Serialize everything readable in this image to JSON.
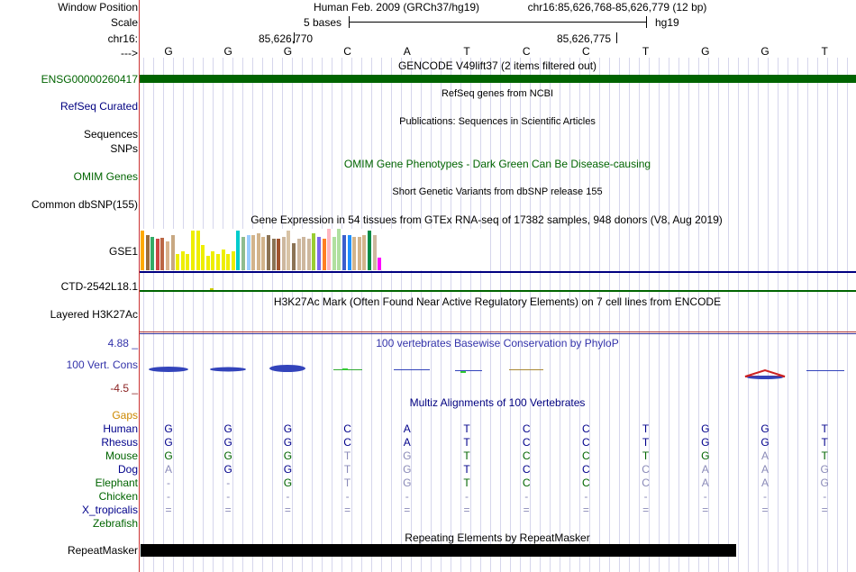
{
  "header": {
    "window_position_label": "Window Position",
    "scale_label": "Scale",
    "chrom_label": "chr16:",
    "strand_label": "--->",
    "assembly_title": "Human Feb. 2009 (GRCh37/hg19)",
    "position_text": "chr16:85,626,768-85,626,779 (12 bp)",
    "scale_text": "5 bases",
    "scale_db": "hg19",
    "coord_left": "85,626,770",
    "coord_right": "85,626,775"
  },
  "dna_bases": [
    "G",
    "G",
    "G",
    "C",
    "A",
    "T",
    "C",
    "C",
    "T",
    "G",
    "G",
    "T"
  ],
  "tracks": {
    "gencode_title": "GENCODE V49lift37 (2 items filtered out)",
    "gencode_item": "ENSG00000260417",
    "refseq_title": "RefSeq genes from NCBI",
    "refseq_label": "RefSeq Curated",
    "pubs_title": "Publications: Sequences in Scientific Articles",
    "sequences_label": "Sequences",
    "snps_label": "SNPs",
    "omim_title": "OMIM Gene Phenotypes - Dark Green Can Be Disease-causing",
    "omim_label": "OMIM Genes",
    "dbsnp_title": "Short Genetic Variants from dbSNP release 155",
    "dbsnp_label": "Common dbSNP(155)",
    "gtex_title": "Gene Expression in 54 tissues from GTEx RNA-seq of 17382 samples, 948 donors (V8, Aug 2019)",
    "gtex_label": "GSE1",
    "ctd_label": "CTD-2542L18.1",
    "h3k27_title": "H3K27Ac Mark (Often Found Near Active Regulatory Elements) on 7 cell lines from ENCODE",
    "h3k27_label": "Layered H3K27Ac",
    "phylop_title": "100 vertebrates Basewise Conservation by PhyloP",
    "phylop_label": "100 Vert. Cons",
    "phylop_max": "4.88 _",
    "phylop_min": "-4.5 _",
    "multiz_title": "Multiz Alignments of 100 Vertebrates",
    "gaps_label": "Gaps",
    "repeat_title": "Repeating Elements by RepeatMasker",
    "repeat_label": "RepeatMasker"
  },
  "gtex_expression": [
    {
      "v": 0.95,
      "c": "#ffaa00"
    },
    {
      "v": 0.85,
      "c": "#9a6d3b"
    },
    {
      "v": 0.8,
      "c": "#33aa66"
    },
    {
      "v": 0.75,
      "c": "#c44"
    },
    {
      "v": 0.78,
      "c": "#bb6644"
    },
    {
      "v": 0.7,
      "c": "#d9b38c"
    },
    {
      "v": 0.85,
      "c": "#c8a882"
    },
    {
      "v": 0.4,
      "c": "#eeee00"
    },
    {
      "v": 0.45,
      "c": "#eeee00"
    },
    {
      "v": 0.4,
      "c": "#eeee00"
    },
    {
      "v": 0.95,
      "c": "#eeee00"
    },
    {
      "v": 0.95,
      "c": "#eeee00"
    },
    {
      "v": 0.6,
      "c": "#eeee00"
    },
    {
      "v": 0.35,
      "c": "#eeee00"
    },
    {
      "v": 0.45,
      "c": "#eeee00"
    },
    {
      "v": 0.4,
      "c": "#eeee00"
    },
    {
      "v": 0.5,
      "c": "#eeee00"
    },
    {
      "v": 0.4,
      "c": "#eeee00"
    },
    {
      "v": 0.45,
      "c": "#eeee00"
    },
    {
      "v": 0.95,
      "c": "#00cccc"
    },
    {
      "v": 0.8,
      "c": "#8fbc8f"
    },
    {
      "v": 0.85,
      "c": "#99ccff"
    },
    {
      "v": 0.85,
      "c": "#d2b48c"
    },
    {
      "v": 0.9,
      "c": "#d2b48c"
    },
    {
      "v": 0.8,
      "c": "#d2b48c"
    },
    {
      "v": 0.85,
      "c": "#8b7355"
    },
    {
      "v": 0.75,
      "c": "#8b7355"
    },
    {
      "v": 0.75,
      "c": "#a0522d"
    },
    {
      "v": 0.8,
      "c": "#cdb79e"
    },
    {
      "v": 0.95,
      "c": "#d8c3a5"
    },
    {
      "v": 0.65,
      "c": "#8b7355"
    },
    {
      "v": 0.75,
      "c": "#cdb79e"
    },
    {
      "v": 0.8,
      "c": "#cdb79e"
    },
    {
      "v": 0.75,
      "c": "#cdb79e"
    },
    {
      "v": 0.9,
      "c": "#9acd32"
    },
    {
      "v": 0.8,
      "c": "#7a67ee"
    },
    {
      "v": 0.75,
      "c": "#ff7f24"
    },
    {
      "v": 1.0,
      "c": "#ffb6c1"
    },
    {
      "v": 0.8,
      "c": "#b0e0a0"
    },
    {
      "v": 1.0,
      "c": "#b0e0a0"
    },
    {
      "v": 0.85,
      "c": "#3a5fcd"
    },
    {
      "v": 0.85,
      "c": "#1e90ff"
    },
    {
      "v": 0.8,
      "c": "#d2b48c"
    },
    {
      "v": 0.8,
      "c": "#d2b48c"
    },
    {
      "v": 0.85,
      "c": "#d2b48c"
    },
    {
      "v": 0.95,
      "c": "#008b45"
    },
    {
      "v": 0.85,
      "c": "#cdb79e"
    },
    {
      "v": 0.3,
      "c": "#ff00ff"
    }
  ],
  "alignments": [
    {
      "species": "Human",
      "color": "#00008b",
      "bases": [
        "G",
        "G",
        "G",
        "C",
        "A",
        "T",
        "C",
        "C",
        "T",
        "G",
        "G",
        "T"
      ],
      "mismatch": [
        0,
        0,
        0,
        0,
        0,
        0,
        0,
        0,
        0,
        0,
        0,
        0
      ]
    },
    {
      "species": "Rhesus",
      "color": "#00008b",
      "bases": [
        "G",
        "G",
        "G",
        "C",
        "A",
        "T",
        "C",
        "C",
        "T",
        "G",
        "G",
        "T"
      ],
      "mismatch": [
        0,
        0,
        0,
        0,
        0,
        0,
        0,
        0,
        0,
        0,
        0,
        0
      ]
    },
    {
      "species": "Mouse",
      "color": "#006400",
      "bases": [
        "G",
        "G",
        "G",
        "T",
        "G",
        "T",
        "C",
        "C",
        "T",
        "G",
        "A",
        "T"
      ],
      "mismatch": [
        0,
        0,
        0,
        1,
        1,
        0,
        0,
        0,
        0,
        0,
        1,
        0
      ]
    },
    {
      "species": "Dog",
      "color": "#00008b",
      "bases": [
        "A",
        "G",
        "G",
        "T",
        "G",
        "T",
        "C",
        "C",
        "C",
        "A",
        "A",
        "G"
      ],
      "mismatch": [
        1,
        0,
        0,
        1,
        1,
        0,
        0,
        0,
        1,
        1,
        1,
        1
      ]
    },
    {
      "species": "Elephant",
      "color": "#006400",
      "bases": [
        "-",
        "-",
        "G",
        "T",
        "G",
        "T",
        "C",
        "C",
        "C",
        "A",
        "A",
        "G"
      ],
      "mismatch": [
        1,
        1,
        0,
        1,
        1,
        0,
        0,
        0,
        1,
        1,
        1,
        1
      ]
    },
    {
      "species": "Chicken",
      "color": "#006400",
      "bases": [
        "-",
        "-",
        "-",
        "-",
        "-",
        "-",
        "-",
        "-",
        "-",
        "-",
        "-",
        "-"
      ],
      "mismatch": [
        1,
        1,
        1,
        1,
        1,
        1,
        1,
        1,
        1,
        1,
        1,
        1
      ]
    },
    {
      "species": "X_tropicalis",
      "color": "#00008b",
      "bases": [
        "=",
        "=",
        "=",
        "=",
        "=",
        "=",
        "=",
        "=",
        "=",
        "=",
        "=",
        "="
      ],
      "mismatch": [
        1,
        1,
        1,
        1,
        1,
        1,
        1,
        1,
        1,
        1,
        1,
        1
      ]
    },
    {
      "species": "Zebrafish",
      "color": "#006400",
      "bases": [
        "",
        "",
        "",
        "",
        "",
        "",
        "",
        "",
        "",
        "",
        "",
        ""
      ],
      "mismatch": [
        0,
        0,
        0,
        0,
        0,
        0,
        0,
        0,
        0,
        0,
        0,
        0
      ]
    }
  ],
  "colors": {
    "gencode": "#006400",
    "navy": "#000080",
    "omim_green": "#006400",
    "gaps_orange": "#cc8800",
    "phylop_blue": "#3333aa",
    "phylop_red": "#aa2222",
    "repeat_black": "#000000"
  }
}
